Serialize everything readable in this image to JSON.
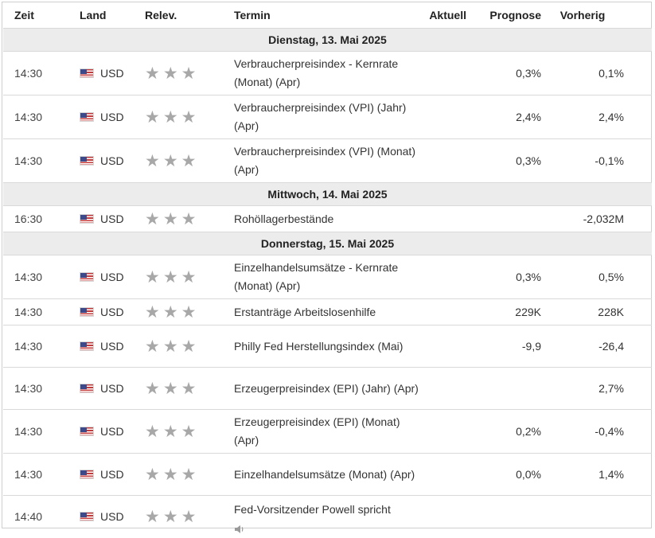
{
  "headers": {
    "time": "Zeit",
    "country": "Land",
    "relevance": "Relev.",
    "event": "Termin",
    "actual": "Aktuell",
    "forecast": "Prognose",
    "previous": "Vorherig"
  },
  "icons": {
    "flag": "us-flag-icon",
    "star": "star-icon",
    "speaker": "speaker-icon"
  },
  "colors": {
    "date_row_bg": "#ececec",
    "star": "#a8a8a8",
    "border": "#d9d9d9"
  },
  "groups": [
    {
      "date": "Dienstag, 13. Mai 2025",
      "events": [
        {
          "time": "14:30",
          "country": "USD",
          "event": "Verbraucherpreisindex - Kernrate (Monat) (Apr)",
          "actual": "",
          "forecast": "0,3%",
          "previous": "0,1%"
        },
        {
          "time": "14:30",
          "country": "USD",
          "event": "Verbraucherpreisindex (VPI) (Jahr) (Apr)",
          "actual": "",
          "forecast": "2,4%",
          "previous": "2,4%"
        },
        {
          "time": "14:30",
          "country": "USD",
          "event": "Verbraucherpreisindex (VPI) (Monat) (Apr)",
          "actual": "",
          "forecast": "0,3%",
          "previous": "-0,1%"
        }
      ]
    },
    {
      "date": "Mittwoch, 14. Mai 2025",
      "events": [
        {
          "time": "16:30",
          "country": "USD",
          "event": "Rohöllagerbestände",
          "actual": "",
          "forecast": "",
          "previous": "-2,032M"
        }
      ]
    },
    {
      "date": "Donnerstag, 15. Mai 2025",
      "events": [
        {
          "time": "14:30",
          "country": "USD",
          "event": "Einzelhandelsumsätze - Kernrate (Monat) (Apr)",
          "actual": "",
          "forecast": "0,3%",
          "previous": "0,5%"
        },
        {
          "time": "14:30",
          "country": "USD",
          "event": "Erstanträge Arbeitslosenhilfe",
          "actual": "",
          "forecast": "229K",
          "previous": "228K"
        },
        {
          "time": "14:30",
          "country": "USD",
          "event": "Philly Fed Herstellungsindex (Mai)",
          "actual": "",
          "forecast": "-9,9",
          "previous": "-26,4"
        },
        {
          "time": "14:30",
          "country": "USD",
          "event": "Erzeugerpreisindex (EPI) (Jahr) (Apr)",
          "actual": "",
          "forecast": "",
          "previous": "2,7%"
        },
        {
          "time": "14:30",
          "country": "USD",
          "event": "Erzeugerpreisindex (EPI) (Monat) (Apr)",
          "actual": "",
          "forecast": "0,2%",
          "previous": "-0,4%"
        },
        {
          "time": "14:30",
          "country": "USD",
          "event": "Einzelhandelsumsätze (Monat) (Apr)",
          "actual": "",
          "forecast": "0,0%",
          "previous": "1,4%"
        },
        {
          "time": "14:40",
          "country": "USD",
          "event": "Fed-Vorsitzender Powell spricht",
          "actual": "",
          "forecast": "",
          "previous": "",
          "speech": true
        }
      ]
    }
  ]
}
